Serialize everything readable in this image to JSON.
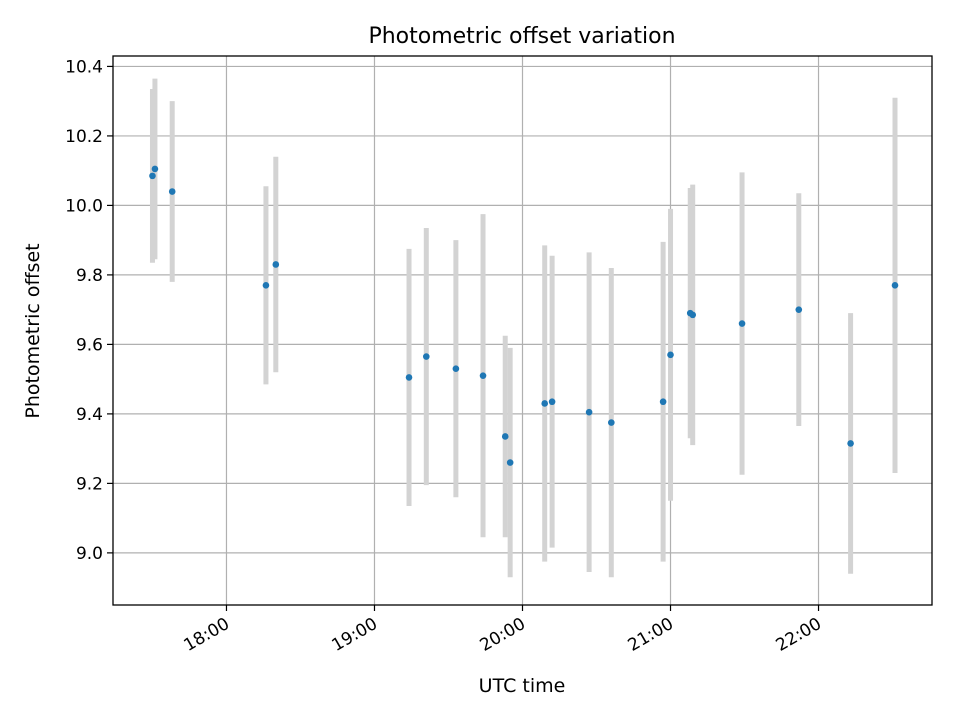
{
  "chart_data": {
    "type": "scatter",
    "title": "Photometric offset variation",
    "xlabel": "UTC time",
    "ylabel": "Photometric offset",
    "xlim": [
      "17:14",
      "22:46"
    ],
    "ylim": [
      8.85,
      10.43
    ],
    "x_ticks": [
      "18:00",
      "19:00",
      "20:00",
      "21:00",
      "22:00"
    ],
    "y_ticks": [
      "9.0",
      "9.2",
      "9.4",
      "9.6",
      "9.8",
      "10.0",
      "10.2",
      "10.4"
    ],
    "grid": true,
    "colors": {
      "points": "#1f77b4",
      "error_bars": "#d3d3d3",
      "grid": "#b0b0b0"
    },
    "points": [
      {
        "x": "17:30",
        "y": 10.085,
        "yerr": 0.25
      },
      {
        "x": "17:31",
        "y": 10.105,
        "yerr": 0.26
      },
      {
        "x": "17:38",
        "y": 10.04,
        "yerr": 0.26
      },
      {
        "x": "18:16",
        "y": 9.77,
        "yerr": 0.285
      },
      {
        "x": "18:20",
        "y": 9.83,
        "yerr": 0.31
      },
      {
        "x": "19:14",
        "y": 9.505,
        "yerr": 0.37
      },
      {
        "x": "19:21",
        "y": 9.565,
        "yerr": 0.37
      },
      {
        "x": "19:33",
        "y": 9.53,
        "yerr": 0.37
      },
      {
        "x": "19:44",
        "y": 9.51,
        "yerr": 0.465
      },
      {
        "x": "19:53",
        "y": 9.335,
        "yerr": 0.29
      },
      {
        "x": "19:55",
        "y": 9.26,
        "yerr": 0.33
      },
      {
        "x": "20:09",
        "y": 9.43,
        "yerr": 0.455
      },
      {
        "x": "20:12",
        "y": 9.435,
        "yerr": 0.42
      },
      {
        "x": "20:27",
        "y": 9.405,
        "yerr": 0.46
      },
      {
        "x": "20:36",
        "y": 9.375,
        "yerr": 0.445
      },
      {
        "x": "20:57",
        "y": 9.435,
        "yerr": 0.46
      },
      {
        "x": "21:00",
        "y": 9.57,
        "yerr": 0.42
      },
      {
        "x": "21:08",
        "y": 9.69,
        "yerr": 0.36
      },
      {
        "x": "21:09",
        "y": 9.685,
        "yerr": 0.375
      },
      {
        "x": "21:29",
        "y": 9.66,
        "yerr": 0.435
      },
      {
        "x": "21:52",
        "y": 9.7,
        "yerr": 0.335
      },
      {
        "x": "22:13",
        "y": 9.315,
        "yerr": 0.375
      },
      {
        "x": "22:31",
        "y": 9.77,
        "yerr": 0.54
      }
    ]
  }
}
